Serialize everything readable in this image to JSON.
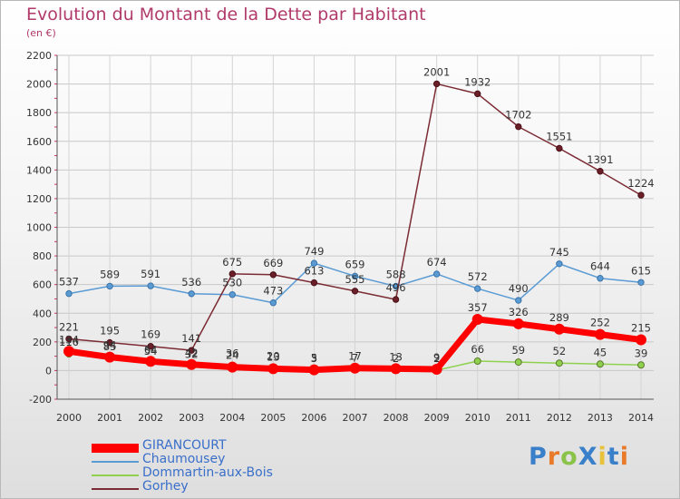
{
  "chart_data": {
    "type": "line",
    "title": "Evolution du Montant de la Dette par Habitant",
    "subtitle": "(en €)",
    "x": [
      2000,
      2001,
      2002,
      2003,
      2004,
      2005,
      2006,
      2007,
      2008,
      2009,
      2010,
      2011,
      2012,
      2013,
      2014
    ],
    "ylim": [
      -200,
      2200
    ],
    "yticks": [
      -200,
      0,
      200,
      400,
      600,
      800,
      1000,
      1200,
      1400,
      1600,
      1800,
      2000,
      2200
    ],
    "grid": true,
    "legend_position": "bottom-left",
    "series": [
      {
        "name": "GIRANCOURT",
        "color": "#ff0000",
        "values": [
          134,
          94,
          64,
          42,
          24,
          13,
          5,
          17,
          13,
          9,
          357,
          326,
          289,
          252,
          215
        ]
      },
      {
        "name": "Chaumousey",
        "color": "#5a9bd4",
        "values": [
          537,
          589,
          591,
          536,
          530,
          473,
          749,
          659,
          588,
          674,
          572,
          490,
          745,
          644,
          615
        ]
      },
      {
        "name": "Dommartin-aux-Bois",
        "color": "#8fd14f",
        "values": [
          116,
          85,
          54,
          32,
          36,
          20,
          3,
          7,
          2,
          2,
          66,
          59,
          52,
          45,
          39
        ]
      },
      {
        "name": "Gorhey",
        "color": "#7b2b33",
        "values": [
          221,
          195,
          169,
          141,
          675,
          669,
          613,
          555,
          496,
          2001,
          1932,
          1702,
          1551,
          1391,
          1224
        ]
      }
    ]
  },
  "logo": {
    "text": "ProXiti"
  }
}
